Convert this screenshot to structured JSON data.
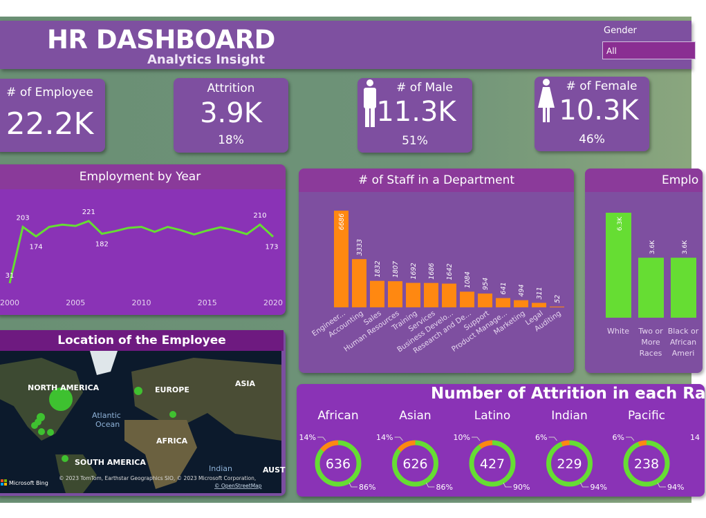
{
  "header": {
    "title": "HR DASHBOARD",
    "subtitle": "Analytics Insight"
  },
  "filter": {
    "label": "Gender",
    "value": "All"
  },
  "kpis": [
    {
      "label": "# of Employee",
      "value": "22.2K"
    },
    {
      "label": "Attrition",
      "value": "3.9K",
      "pct": "18%"
    },
    {
      "label": "# of Male",
      "value": "11.3K",
      "pct": "51%",
      "icon": "male-icon"
    },
    {
      "label": "# of Female",
      "value": "10.3K",
      "pct": "46%",
      "icon": "female-icon"
    }
  ],
  "chart_data": [
    {
      "type": "line",
      "title": "Employment by Year",
      "x": [
        2000,
        2001,
        2002,
        2003,
        2004,
        2005,
        2006,
        2007,
        2008,
        2009,
        2010,
        2011,
        2012,
        2013,
        2014,
        2015,
        2016,
        2017,
        2018,
        2019,
        2020
      ],
      "values": [
        31,
        203,
        174,
        203,
        210,
        206,
        221,
        182,
        190,
        200,
        203,
        188,
        203,
        193,
        180,
        192,
        202,
        193,
        181,
        210,
        173
      ],
      "labeled": {
        "2000": "31",
        "2001": "203",
        "2002": "174",
        "2006": "221",
        "2007": "182",
        "2019": "210",
        "2020": "173"
      },
      "xticks": [
        "2000",
        "2005",
        "2010",
        "2015",
        "2020"
      ],
      "color": "#66dd33"
    },
    {
      "type": "bar",
      "title": "# of Staff in a Department",
      "categories": [
        "Engineer...",
        "Accounting",
        "Sales",
        "Human Resources",
        "Training",
        "Services",
        "Business Develo...",
        "Research and De...",
        "Support",
        "Product Manage...",
        "Marketing",
        "Legal",
        "Auditing"
      ],
      "values": [
        6686,
        3333,
        1832,
        1807,
        1692,
        1686,
        1642,
        1084,
        954,
        641,
        494,
        311,
        52
      ],
      "color": "#ff8811"
    },
    {
      "type": "bar",
      "title": "Emplo",
      "categories": [
        "White",
        "Two or More Races",
        "Black or African Ameri"
      ],
      "values": [
        6300,
        3600,
        3600
      ],
      "labels": [
        "6.3K",
        "3.6K",
        "3.6K"
      ],
      "color": "#66dd33"
    },
    {
      "type": "pie",
      "title": "Number of Attrition in each Ra",
      "groups": [
        {
          "name": "African",
          "total": "636",
          "attr": "14%",
          "rest": "86%",
          "p": 14
        },
        {
          "name": "Asian",
          "total": "626",
          "attr": "14%",
          "rest": "86%",
          "p": 14
        },
        {
          "name": "Latino",
          "total": "427",
          "attr": "10%",
          "rest": "90%",
          "p": 10
        },
        {
          "name": "Indian",
          "total": "229",
          "attr": "6%",
          "rest": "94%",
          "p": 6
        },
        {
          "name": "Pacific",
          "total": "238",
          "attr": "6%",
          "rest": "94%",
          "p": 6
        }
      ],
      "partial_label": "14"
    }
  ],
  "map": {
    "title": "Location of the Employee",
    "labels": [
      "NORTH AMERICA",
      "EUROPE",
      "ASIA",
      "Atlantic",
      "Ocean",
      "AFRICA",
      "SOUTH AMERICA",
      "Indian",
      "AUST"
    ],
    "attribution": "© 2023 TomTom, Earthstar Geographics SIO, © 2023 Microsoft Corporation,",
    "osm": "© OpenStreetMap",
    "brand": "Microsoft Bing"
  }
}
